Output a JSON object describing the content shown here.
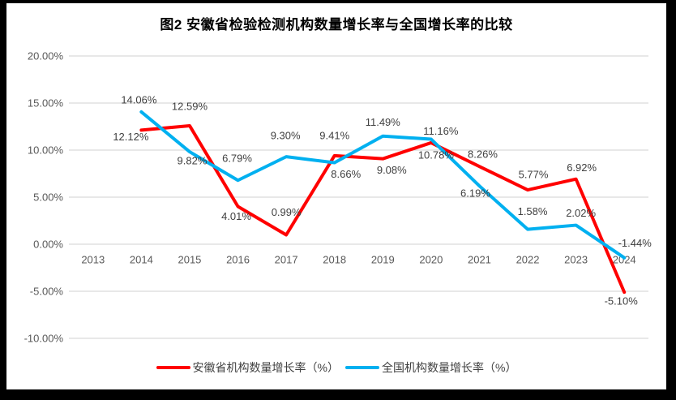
{
  "chart_data": {
    "type": "line",
    "title": "图2 安徽省检验检测机构数量增长率与全国增长率的比较",
    "categories": [
      "2013",
      "2014",
      "2015",
      "2016",
      "2017",
      "2018",
      "2019",
      "2020",
      "2021",
      "2022",
      "2023",
      "2024"
    ],
    "series": [
      {
        "name": "安徽省机构数量增长率（%）",
        "color": "#FF0000",
        "values": [
          null,
          12.12,
          12.59,
          4.01,
          0.99,
          9.41,
          9.08,
          10.78,
          8.26,
          5.77,
          6.92,
          -5.1
        ],
        "labels": [
          "",
          "12.12%",
          "12.59%",
          "4.01%",
          "0.99%",
          "9.41%",
          "9.08%",
          "10.78%",
          "8.26%",
          "5.77%",
          "6.92%",
          "-5.10%"
        ],
        "label_offsets": [
          [
            0,
            0
          ],
          [
            -13,
            8
          ],
          [
            0,
            -24
          ],
          [
            -2,
            12
          ],
          [
            0,
            -28
          ],
          [
            0,
            -25
          ],
          [
            11,
            14
          ],
          [
            6,
            15
          ],
          [
            4,
            -15
          ],
          [
            7,
            -19
          ],
          [
            7,
            -14
          ],
          [
            -4,
            11
          ]
        ]
      },
      {
        "name": "全国机构数量增长率（%）",
        "color": "#00B0F0",
        "values": [
          null,
          14.06,
          9.82,
          6.79,
          9.3,
          8.66,
          11.49,
          11.16,
          6.19,
          1.58,
          2.02,
          -1.44
        ],
        "labels": [
          "",
          "14.06%",
          "9.82%",
          "6.79%",
          "9.30%",
          "8.66%",
          "11.49%",
          "11.16%",
          "6.19%",
          "1.58%",
          "2.02%",
          "-1.44%"
        ],
        "label_offsets": [
          [
            0,
            0
          ],
          [
            -3,
            -15
          ],
          [
            3,
            11
          ],
          [
            -1,
            -27
          ],
          [
            -1,
            -26
          ],
          [
            14,
            14
          ],
          [
            0,
            -17
          ],
          [
            12,
            -10
          ],
          [
            -5,
            9
          ],
          [
            6,
            -22
          ],
          [
            6,
            -15
          ],
          [
            13,
            -18
          ]
        ]
      }
    ],
    "ylim": [
      -10,
      20
    ],
    "ytick_step": 5,
    "yticks": [
      "20.00%",
      "15.00%",
      "10.00%",
      "5.00%",
      "0.00%",
      "-5.00%",
      "-10.00%"
    ],
    "grid": true,
    "legend_position": "bottom"
  },
  "colors": {
    "grid": "#D9D9D9",
    "axis_text": "#595959",
    "data_label_text": "#404040",
    "frame": "#000000",
    "background": "#FFFFFF"
  }
}
